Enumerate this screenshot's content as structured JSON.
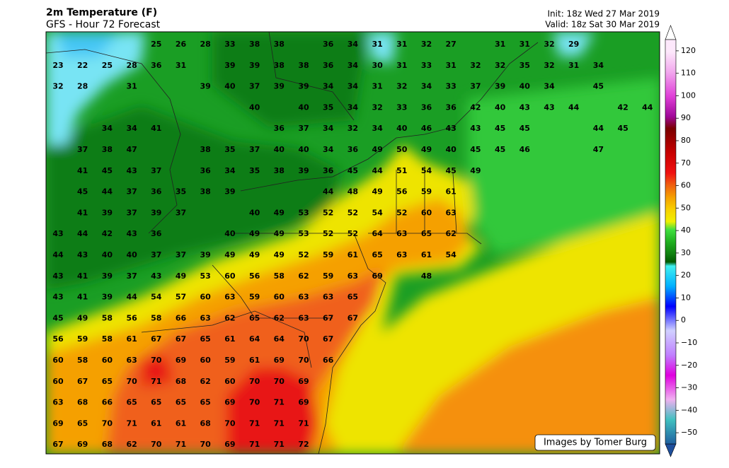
{
  "header": {
    "title": "2m Temperature (F)",
    "subtitle": "GFS - Hour 72 Forecast",
    "init": "Init: 18z Wed 27 Mar 2019",
    "valid": "Valid: 18z Sat 30 Mar 2019"
  },
  "map": {
    "rows": [
      [
        null,
        null,
        null,
        null,
        25,
        26,
        28,
        33,
        38,
        38,
        null,
        36,
        34,
        31,
        31,
        32,
        27,
        null,
        31,
        31,
        32,
        29
      ],
      [
        23,
        22,
        25,
        28,
        36,
        31,
        null,
        39,
        39,
        38,
        38,
        36,
        34,
        30,
        31,
        33,
        31,
        32,
        32,
        35,
        32,
        31,
        34
      ],
      [
        32,
        28,
        null,
        31,
        null,
        null,
        39,
        40,
        37,
        39,
        39,
        34,
        34,
        31,
        32,
        34,
        33,
        37,
        39,
        40,
        34,
        null,
        45
      ],
      [
        null,
        null,
        null,
        null,
        null,
        null,
        null,
        null,
        40,
        null,
        40,
        35,
        34,
        32,
        33,
        36,
        36,
        42,
        40,
        43,
        43,
        44,
        null,
        42,
        44
      ],
      [
        null,
        null,
        34,
        34,
        41,
        null,
        null,
        null,
        null,
        36,
        37,
        34,
        32,
        34,
        40,
        46,
        43,
        43,
        45,
        45,
        null,
        null,
        44,
        45
      ],
      [
        null,
        37,
        38,
        47,
        null,
        null,
        38,
        35,
        37,
        40,
        40,
        34,
        36,
        49,
        50,
        49,
        40,
        45,
        45,
        46,
        null,
        null,
        47
      ],
      [
        null,
        41,
        45,
        43,
        37,
        null,
        36,
        34,
        35,
        38,
        39,
        36,
        45,
        44,
        51,
        54,
        45,
        49
      ],
      [
        null,
        45,
        44,
        37,
        36,
        35,
        38,
        39,
        null,
        null,
        null,
        44,
        48,
        49,
        56,
        59,
        61
      ],
      [
        null,
        41,
        39,
        37,
        39,
        37,
        null,
        null,
        40,
        49,
        53,
        52,
        52,
        54,
        52,
        60,
        63
      ],
      [
        43,
        44,
        42,
        43,
        36,
        null,
        null,
        40,
        49,
        49,
        53,
        52,
        52,
        64,
        63,
        65,
        62
      ],
      [
        44,
        43,
        40,
        40,
        37,
        37,
        39,
        49,
        49,
        49,
        52,
        59,
        61,
        65,
        63,
        61,
        54
      ],
      [
        43,
        41,
        39,
        37,
        43,
        49,
        53,
        60,
        56,
        58,
        62,
        59,
        63,
        69,
        null,
        48
      ],
      [
        43,
        41,
        39,
        44,
        54,
        57,
        60,
        63,
        59,
        60,
        63,
        63,
        65
      ],
      [
        45,
        49,
        58,
        56,
        58,
        66,
        63,
        62,
        65,
        62,
        63,
        67,
        67
      ],
      [
        56,
        59,
        58,
        61,
        67,
        67,
        65,
        61,
        64,
        64,
        70,
        67
      ],
      [
        60,
        58,
        60,
        63,
        70,
        69,
        60,
        59,
        61,
        69,
        70,
        66
      ],
      [
        60,
        67,
        65,
        70,
        71,
        68,
        62,
        60,
        70,
        70,
        69
      ],
      [
        63,
        68,
        66,
        65,
        65,
        65,
        65,
        69,
        70,
        71,
        69
      ],
      [
        69,
        65,
        70,
        71,
        61,
        61,
        68,
        70,
        71,
        71,
        71
      ],
      [
        67,
        69,
        68,
        62,
        70,
        71,
        70,
        69,
        71,
        71,
        72
      ]
    ]
  },
  "colorbar": {
    "lim": [
      -55,
      125
    ],
    "ticks": [
      120,
      110,
      100,
      90,
      80,
      70,
      60,
      50,
      40,
      30,
      20,
      10,
      0,
      {
        "value": -10,
        "label": "−10"
      },
      {
        "value": -20,
        "label": "−20"
      },
      {
        "value": -30,
        "label": "−30"
      },
      {
        "value": -40,
        "label": "−40"
      },
      {
        "value": -50,
        "label": "−50"
      }
    ]
  },
  "credit": "Images by Tomer Burg"
}
